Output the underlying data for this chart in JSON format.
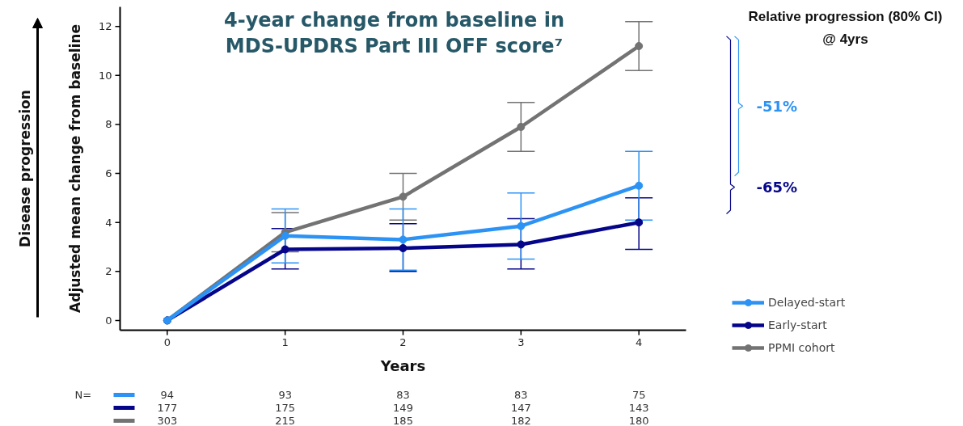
{
  "chart_data": {
    "type": "line",
    "title": "4-year change from baseline in MDS-UPDRS Part III OFF score⁷",
    "xlabel": "Years",
    "ylabel": "Adjusted mean change from baseline",
    "x": [
      0,
      1,
      2,
      3,
      4
    ],
    "xlim": [
      -0.4,
      4.4
    ],
    "xticks": [
      0,
      1,
      2,
      3,
      4
    ],
    "ylim": [
      -0.4,
      12.8
    ],
    "yticks": [
      0,
      2,
      4,
      6,
      8,
      10,
      12
    ],
    "series": [
      {
        "name": "Delayed-start",
        "color": "#2c93f5",
        "values": [
          0,
          3.45,
          3.3,
          3.85,
          5.5
        ],
        "errors": [
          null,
          [
            2.35,
            4.55
          ],
          [
            2.05,
            4.55
          ],
          [
            2.5,
            5.2
          ],
          [
            4.1,
            6.9
          ]
        ]
      },
      {
        "name": "Early-start",
        "color": "#05058a",
        "values": [
          0,
          2.9,
          2.95,
          3.1,
          4.0
        ],
        "errors": [
          null,
          [
            2.1,
            3.75
          ],
          [
            2.0,
            3.95
          ],
          [
            2.1,
            4.15
          ],
          [
            2.9,
            5.0
          ]
        ]
      },
      {
        "name": "PPMI cohort",
        "color": "#737373",
        "values": [
          0,
          3.6,
          5.05,
          7.9,
          11.2
        ],
        "errors": [
          null,
          [
            2.8,
            4.4
          ],
          [
            4.1,
            6.0
          ],
          [
            6.9,
            8.9
          ],
          [
            10.2,
            12.2
          ]
        ]
      }
    ],
    "annotations": [
      "Relative progression (80% CI)\n@ 4yrs",
      "-51%",
      "-65%",
      "Disease progression",
      "N=",
      "94 93 83 83 75",
      "177 175 149 147 143",
      "303 215 185 182 180"
    ],
    "marker": "circle",
    "line_style": "solid",
    "grid": false,
    "legend": "bottom right"
  }
}
